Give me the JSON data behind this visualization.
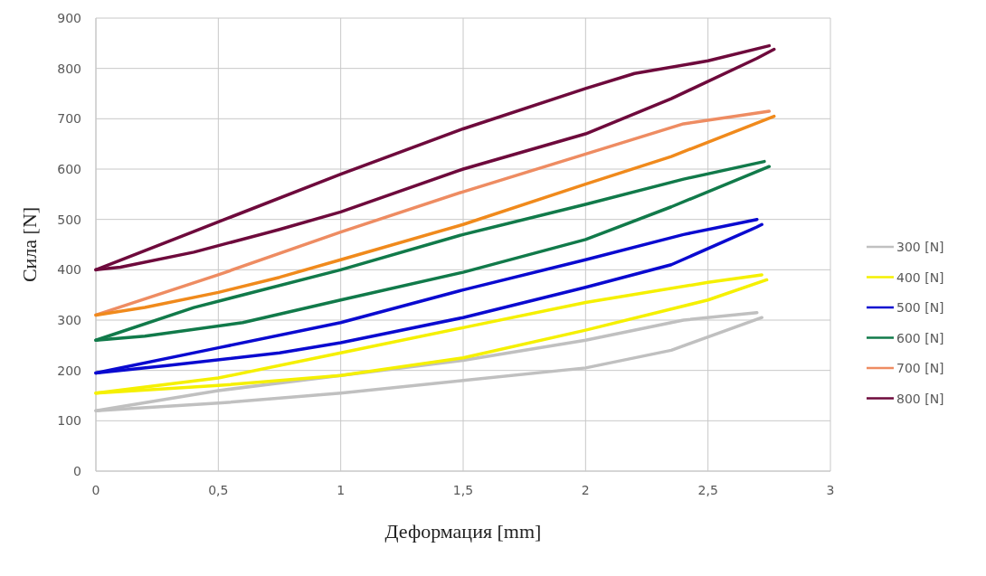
{
  "chart_data": {
    "type": "line",
    "xlabel": "Деформация [mm]",
    "ylabel": "Сила [N]",
    "xlim": [
      0,
      3
    ],
    "ylim": [
      0,
      900
    ],
    "xticks": [
      0,
      {
        "value": 0.5,
        "label": "0,5"
      },
      1,
      {
        "value": 1.5,
        "label": "1,5"
      },
      2,
      {
        "value": 2.5,
        "label": "2,5"
      },
      3
    ],
    "yticks": [
      0,
      100,
      200,
      300,
      400,
      500,
      600,
      700,
      800,
      900
    ],
    "grid": true,
    "legend": "right",
    "marker": "none",
    "line_style": "solid",
    "series": [
      {
        "name": "300 [N]",
        "color": "#c0c0c0",
        "x": [
          0,
          0.5,
          1,
          1.5,
          2,
          2.4,
          2.7
        ],
        "values": [
          120,
          160,
          190,
          220,
          260,
          300,
          315
        ]
      },
      {
        "color": "#c0c0c0",
        "x": [
          0,
          0.5,
          1,
          1.5,
          2,
          2.35,
          2.72
        ],
        "values": [
          120,
          135,
          155,
          180,
          205,
          240,
          305
        ]
      },
      {
        "name": "400 [N]",
        "color": "#f5f000",
        "x": [
          0,
          0.5,
          1,
          1.5,
          2,
          2.5,
          2.72
        ],
        "values": [
          155,
          185,
          235,
          285,
          335,
          375,
          390
        ]
      },
      {
        "color": "#f5f000",
        "x": [
          0,
          0.5,
          1,
          1.5,
          2,
          2.5,
          2.74
        ],
        "values": [
          155,
          170,
          190,
          225,
          280,
          340,
          380
        ]
      },
      {
        "name": "500 [N]",
        "color": "#0a0ad0",
        "x": [
          0,
          0.5,
          1,
          1.5,
          2,
          2.4,
          2.7
        ],
        "values": [
          195,
          245,
          295,
          360,
          420,
          470,
          500
        ]
      },
      {
        "color": "#0a0ad0",
        "x": [
          0,
          0.3,
          0.75,
          1,
          1.5,
          2,
          2.35,
          2.7,
          2.72
        ],
        "values": [
          195,
          210,
          235,
          255,
          305,
          365,
          410,
          485,
          490
        ]
      },
      {
        "name": "600 [N]",
        "color": "#117a4a",
        "x": [
          0,
          0.4,
          1,
          1.5,
          2,
          2.4,
          2.73
        ],
        "values": [
          260,
          325,
          400,
          470,
          530,
          580,
          615
        ]
      },
      {
        "color": "#117a4a",
        "x": [
          0,
          0.2,
          0.6,
          1,
          1.5,
          2,
          2.35,
          2.75
        ],
        "values": [
          260,
          268,
          295,
          340,
          395,
          460,
          525,
          605
        ]
      },
      {
        "name": "700 [N]",
        "color": "#ee8c62",
        "x": [
          0,
          0.5,
          1,
          1.5,
          2,
          2.4,
          2.75
        ],
        "values": [
          310,
          390,
          475,
          555,
          630,
          690,
          715
        ]
      },
      {
        "color": "#f08a1c",
        "x": [
          0,
          0.2,
          0.5,
          0.75,
          1,
          1.5,
          2,
          2.35,
          2.77
        ],
        "values": [
          310,
          325,
          355,
          385,
          420,
          490,
          570,
          625,
          705
        ]
      },
      {
        "name": "800 [N]",
        "color": "#6e0a3c",
        "x": [
          0,
          0.5,
          1,
          1.5,
          2,
          2.2,
          2.5,
          2.75
        ],
        "values": [
          400,
          495,
          590,
          680,
          760,
          790,
          815,
          845
        ]
      },
      {
        "color": "#6e0a3c",
        "x": [
          0,
          0.1,
          0.4,
          0.75,
          1,
          1.5,
          2,
          2.35,
          2.7,
          2.77
        ],
        "values": [
          400,
          405,
          435,
          480,
          515,
          600,
          670,
          740,
          820,
          838
        ]
      }
    ]
  }
}
